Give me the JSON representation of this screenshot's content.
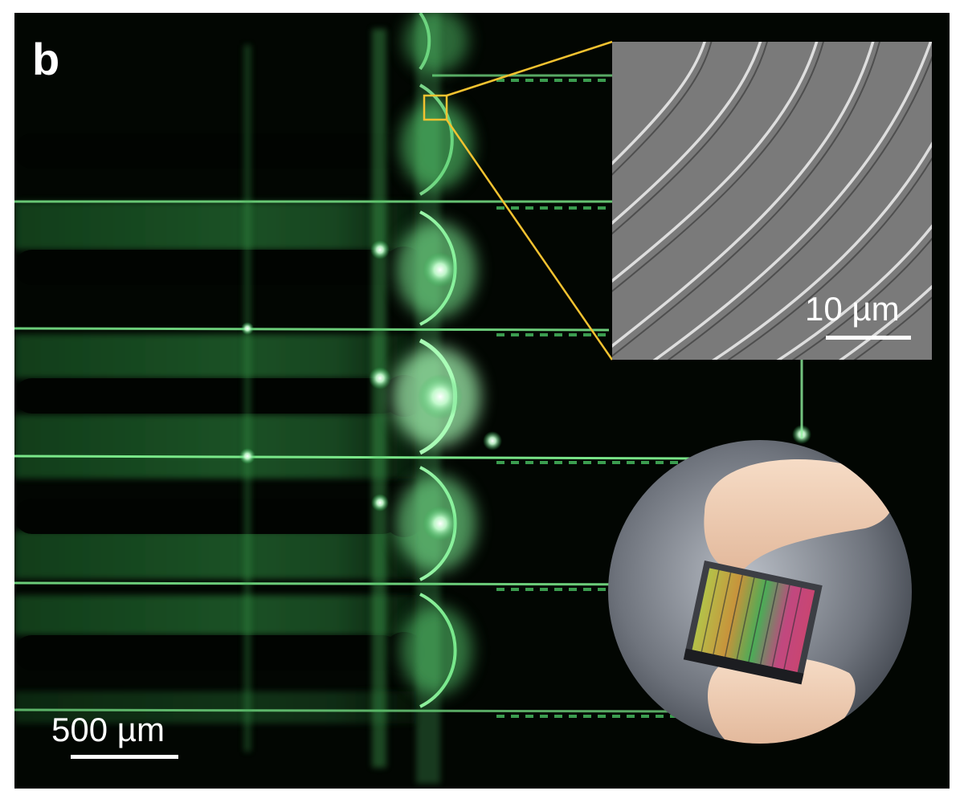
{
  "figure": {
    "panel_label": "b",
    "main_scale_label": "500 µm",
    "inset_scale_label": "10 µm",
    "colors": {
      "background": "#020602",
      "waveguide_glow": "#3fcf5f",
      "highlight_box": "#f2c230",
      "sem_gray": "#7c7c7c"
    }
  }
}
